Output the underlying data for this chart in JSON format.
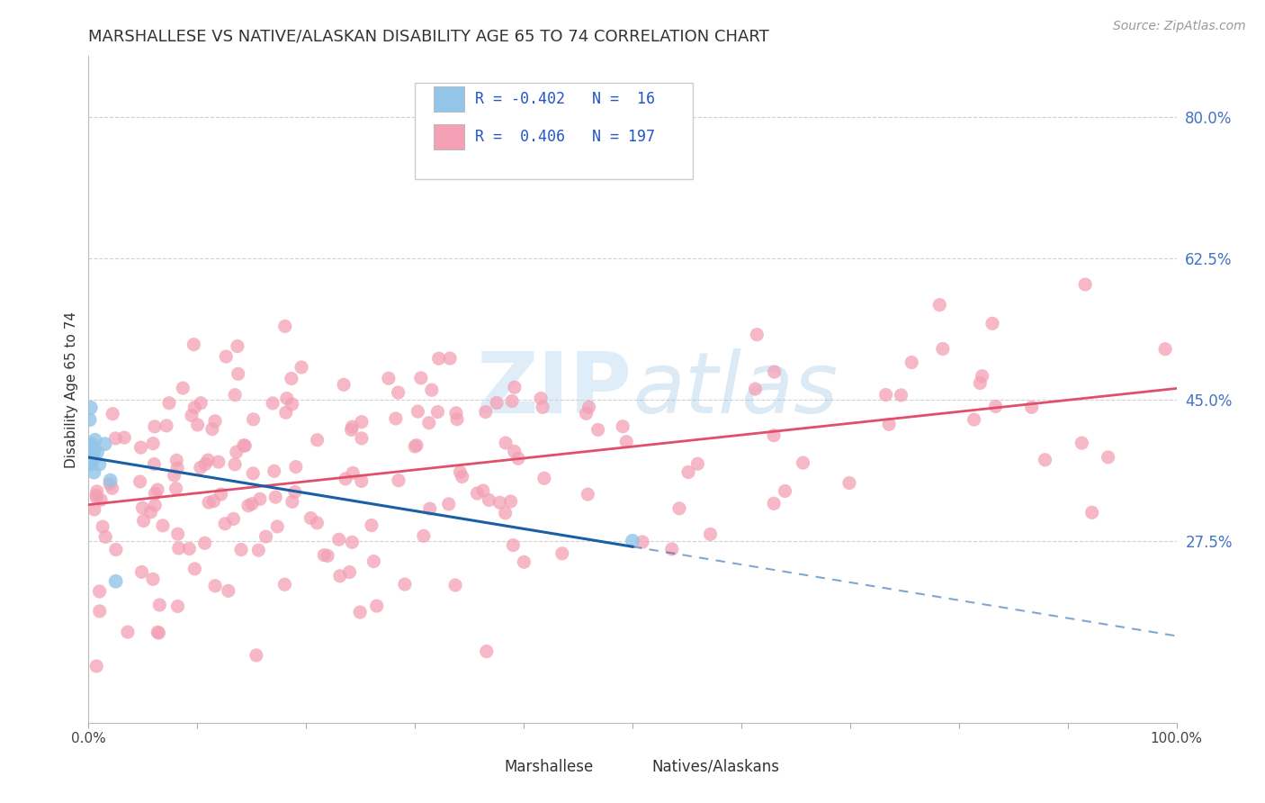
{
  "title": "MARSHALLESE VS NATIVE/ALASKAN DISABILITY AGE 65 TO 74 CORRELATION CHART",
  "source": "Source: ZipAtlas.com",
  "ylabel": "Disability Age 65 to 74",
  "xlim": [
    0.0,
    1.0
  ],
  "ylim": [
    0.05,
    0.875
  ],
  "xticks": [
    0.0,
    0.1,
    0.2,
    0.3,
    0.4,
    0.5,
    0.6,
    0.7,
    0.8,
    0.9,
    1.0
  ],
  "xtick_labels_shown": {
    "0.0": "0.0%",
    "1.0": "100.0%"
  },
  "ytick_positions": [
    0.275,
    0.45,
    0.625,
    0.8
  ],
  "ytick_labels": [
    "27.5%",
    "45.0%",
    "62.5%",
    "80.0%"
  ],
  "blue_color": "#92c5e8",
  "pink_color": "#f4a0b5",
  "trend_blue": "#1a5fa6",
  "trend_pink": "#e0506a",
  "watermark_color": "#b8d8f0",
  "bg_color": "#ffffff",
  "grid_color": "#cccccc",
  "title_fontsize": 13,
  "axis_label_fontsize": 11,
  "tick_fontsize": 11,
  "source_fontsize": 10,
  "legend_r1": "R = -0.402",
  "legend_n1": "N =  16",
  "legend_r2": "R =  0.406",
  "legend_n2": "N = 197"
}
